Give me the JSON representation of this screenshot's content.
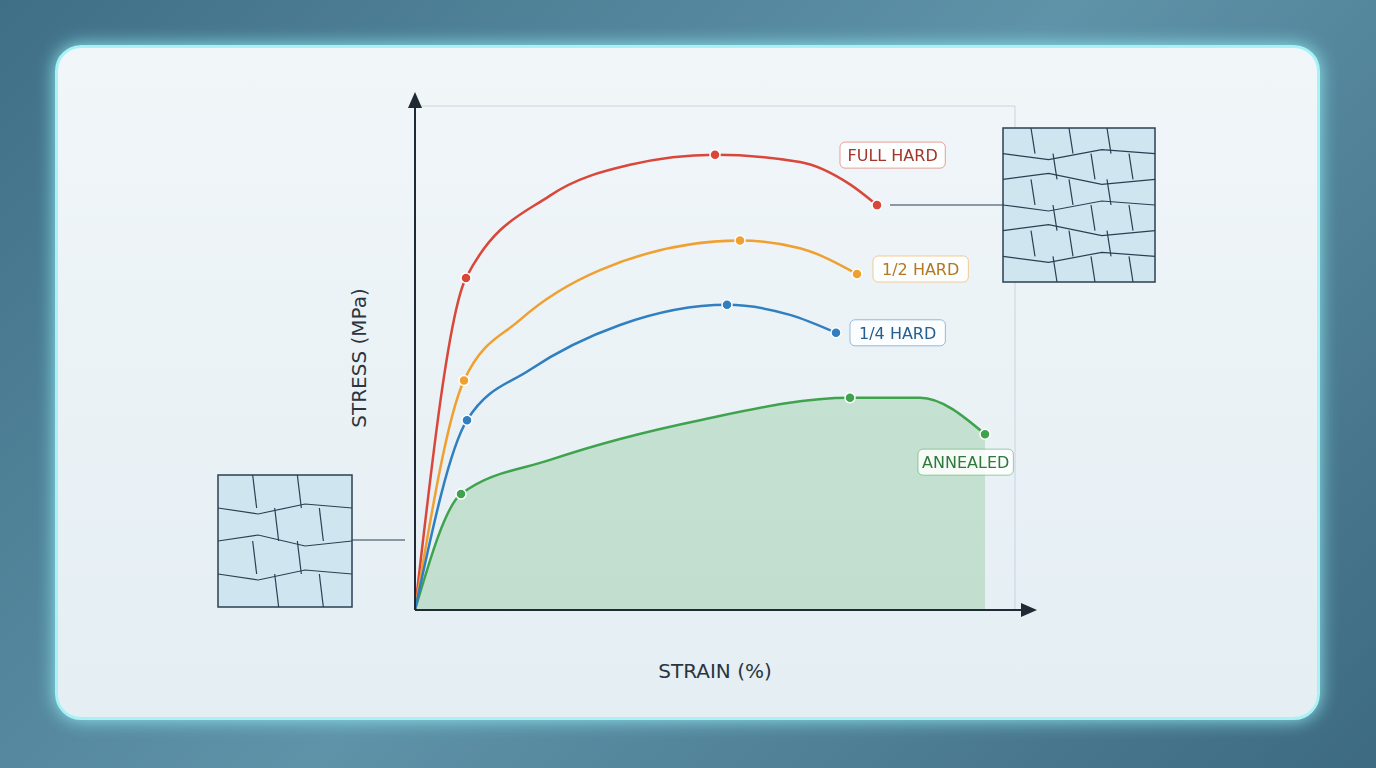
{
  "chart_data": {
    "type": "line",
    "x_label": "STRAIN (%)",
    "y_label": "STRESS (MPa)",
    "xlim": [
      0,
      12
    ],
    "ylim": [
      0,
      9
    ],
    "xticks": [
      0,
      1,
      2,
      3,
      4,
      5,
      6,
      7,
      8,
      9,
      10,
      11,
      12
    ],
    "yticks": [
      0,
      1,
      2,
      3,
      4,
      5,
      6,
      7,
      8
    ],
    "grid": true,
    "tick_labels": false,
    "marker": "circle",
    "series": [
      {
        "name": "FULL HARD",
        "color": "#d9473a",
        "type": "line",
        "x": [
          0,
          1.02,
          2.7,
          4.3,
          6.0,
          7.7,
          8.7,
          9.24
        ],
        "values": [
          0,
          5.93,
          7.4,
          7.95,
          8.13,
          8.0,
          7.6,
          7.23
        ]
      },
      {
        "name": "1/2 HARD",
        "color": "#f0a030",
        "type": "line",
        "x": [
          0,
          0.98,
          2.1,
          3.7,
          6.5,
          7.7,
          8.84
        ],
        "values": [
          0,
          4.1,
          5.18,
          6.07,
          6.6,
          6.46,
          6.0
        ]
      },
      {
        "name": "1/4 HARD",
        "color": "#2f7fc1",
        "type": "line",
        "x": [
          0,
          1.04,
          2.3,
          4.1,
          6.24,
          7.5,
          8.42
        ],
        "values": [
          0,
          3.39,
          4.29,
          5.09,
          5.45,
          5.27,
          4.95
        ]
      },
      {
        "name": "ANNEALED",
        "color": "#3fa34d",
        "type": "area",
        "x": [
          0,
          0.92,
          2.7,
          5.7,
          8.7,
          10.1,
          11.4
        ],
        "values": [
          0,
          2.07,
          2.68,
          3.39,
          3.79,
          3.79,
          3.14
        ]
      }
    ]
  }
}
